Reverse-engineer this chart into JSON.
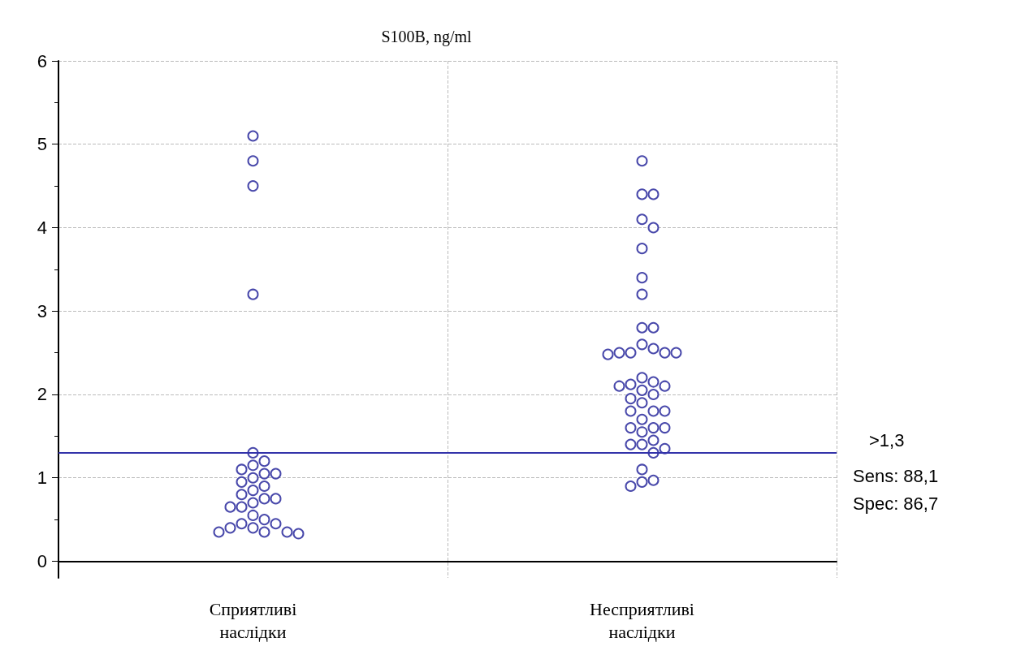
{
  "chart_data": {
    "type": "scatter",
    "title": "S100B, ng/ml",
    "categories": [
      "Сприятливі наслідки",
      "Несприятливі наслідки"
    ],
    "series": [
      {
        "color": "#1c1c96",
        "x": [
          "Сприятливі наслідки",
          "Сприятливі наслідки",
          "Сприятливі наслідки",
          "Сприятливі наслідки",
          "Сприятливі наслідки",
          "Сприятливі наслідки",
          "Сприятливі наслідки",
          "Сприятливі наслідки",
          "Сприятливі наслідки",
          "Сприятливі наслідки",
          "Сприятливі наслідки",
          "Сприятливі наслідки",
          "Сприятливі наслідки",
          "Сприятливі наслідки",
          "Сприятливі наслідки",
          "Сприятливі наслідки",
          "Сприятливі наслідки",
          "Сприятливі наслідки",
          "Сприятливі наслідки",
          "Сприятливі наслідки",
          "Сприятливі наслідки",
          "Сприятливі наслідки",
          "Сприятливі наслідки",
          "Сприятливі наслідки",
          "Сприятливі наслідки",
          "Сприятливі наслідки",
          "Сприятливі наслідки",
          "Сприятливі наслідки",
          "Сприятливі наслідки",
          "Сприятливі наслідки"
        ],
        "values": [
          5.1,
          4.8,
          4.5,
          3.2,
          1.3,
          1.2,
          1.15,
          1.1,
          1.05,
          1.05,
          1.0,
          0.95,
          0.9,
          0.85,
          0.8,
          0.75,
          0.75,
          0.7,
          0.65,
          0.65,
          0.55,
          0.5,
          0.45,
          0.45,
          0.4,
          0.4,
          0.35,
          0.35,
          0.35,
          0.33
        ]
      },
      {
        "color": "#1c1c96",
        "x": [
          "Несприятливі наслідки",
          "Несприятливі наслідки",
          "Несприятливі наслідки",
          "Несприятливі наслідки",
          "Несприятливі наслідки",
          "Несприятливі наслідки",
          "Несприятливі наслідки",
          "Несприятливі наслідки",
          "Несприятливі наслідки",
          "Несприятливі наслідки",
          "Несприятливі наслідки",
          "Несприятливі наслідки",
          "Несприятливі наслідки",
          "Несприятливі наслідки",
          "Несприятливі наслідки",
          "Несприятливі наслідки",
          "Несприятливі наслідки",
          "Несприятливі наслідки",
          "Несприятливі наслідки",
          "Несприятливі наслідки",
          "Несприятливі наслідки",
          "Несприятливі наслідки",
          "Несприятливі наслідки",
          "Несприятливі наслідки",
          "Несприятливі наслідки",
          "Несприятливі наслідки",
          "Несприятливі наслідки",
          "Несприятливі наслідки",
          "Несприятливі наслідки",
          "Несприятливі наслідки",
          "Несприятливі наслідки",
          "Несприятливі наслідки",
          "Несприятливі наслідки",
          "Несприятливі наслідки",
          "Несприятливі наслідки",
          "Несприятливі наслідки",
          "Несприятливі наслідки",
          "Несприятливі наслідки",
          "Несприятливі наслідки",
          "Несприятливі наслідки",
          "Несприятливі наслідки",
          "Несприятливі наслідки",
          "Несприятливі наслідки"
        ],
        "values": [
          4.8,
          4.4,
          4.4,
          4.1,
          4.0,
          3.75,
          3.4,
          3.2,
          2.8,
          2.8,
          2.6,
          2.55,
          2.5,
          2.5,
          2.5,
          2.5,
          2.48,
          2.2,
          2.15,
          2.12,
          2.1,
          2.1,
          2.05,
          2.0,
          1.95,
          1.9,
          1.8,
          1.8,
          1.8,
          1.7,
          1.6,
          1.6,
          1.6,
          1.55,
          1.45,
          1.4,
          1.4,
          1.35,
          1.3,
          1.1,
          0.97,
          0.95,
          0.9
        ]
      }
    ],
    "ylim": [
      -0.2,
      6
    ],
    "yticks": [
      0,
      1,
      2,
      3,
      4,
      5,
      6
    ],
    "grid": true,
    "marker": "circle",
    "ref_lines": [
      {
        "axis": "y",
        "value": 1.3,
        "label": ">1,3",
        "color": "#3333aa"
      }
    ],
    "annotations": [
      "Sens: 88,1",
      "Spec: 86,7"
    ]
  }
}
